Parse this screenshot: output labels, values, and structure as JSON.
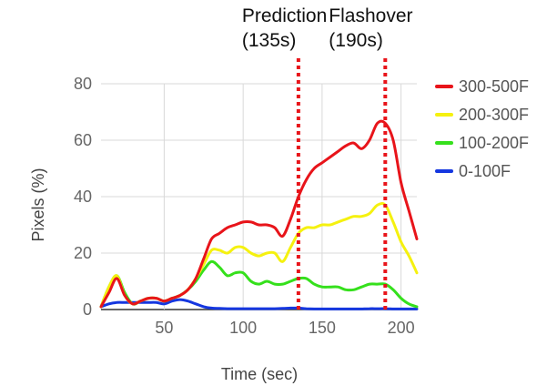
{
  "chart_data": {
    "type": "line",
    "title": "",
    "xlabel": "Time (sec)",
    "ylabel": "Pixels (%)",
    "xlim": [
      10,
      210
    ],
    "ylim": [
      0,
      80
    ],
    "x_ticks": [
      50,
      100,
      150,
      200
    ],
    "y_ticks": [
      0,
      20,
      40,
      60,
      80
    ],
    "grid": true,
    "legend_position": "right",
    "annotations": [
      {
        "line1": "Prediction",
        "line2": "(135s)",
        "x": 135
      },
      {
        "line1": "Flashover",
        "line2": "(190s)",
        "x": 190
      }
    ],
    "annotation_color": "#e8141a",
    "series": [
      {
        "name": "300-500F",
        "color": "#e8141a",
        "x": [
          10,
          15,
          20,
          25,
          30,
          35,
          40,
          45,
          50,
          55,
          60,
          65,
          70,
          75,
          80,
          85,
          90,
          95,
          100,
          105,
          110,
          115,
          120,
          125,
          130,
          135,
          140,
          145,
          150,
          155,
          160,
          165,
          170,
          175,
          180,
          185,
          190,
          195,
          200,
          205,
          210
        ],
        "values": [
          1,
          6,
          11,
          5,
          2,
          3,
          4,
          4,
          3,
          4,
          5,
          7,
          11,
          18,
          25,
          27,
          29,
          30,
          31,
          31,
          30,
          30,
          29,
          26,
          32,
          40,
          46,
          50,
          52,
          54,
          56,
          58,
          59,
          57,
          60,
          66,
          66,
          60,
          45,
          35,
          25
        ]
      },
      {
        "name": "200-300F",
        "color": "#f5f10f",
        "x": [
          10,
          15,
          20,
          25,
          30,
          35,
          40,
          45,
          50,
          55,
          60,
          65,
          70,
          75,
          80,
          85,
          90,
          95,
          100,
          105,
          110,
          115,
          120,
          125,
          130,
          135,
          140,
          145,
          150,
          155,
          160,
          165,
          170,
          175,
          180,
          185,
          190,
          195,
          200,
          205,
          210
        ],
        "values": [
          1,
          8,
          12,
          5,
          2,
          3,
          4,
          4,
          3,
          4,
          5,
          7,
          11,
          16,
          21,
          21,
          20,
          22,
          22,
          20,
          19,
          20,
          20,
          17,
          22,
          27,
          29,
          29,
          30,
          30,
          31,
          32,
          33,
          33,
          34,
          37,
          37,
          31,
          24,
          19,
          13
        ]
      },
      {
        "name": "100-200F",
        "color": "#35e01c",
        "x": [
          10,
          15,
          20,
          25,
          30,
          35,
          40,
          45,
          50,
          55,
          60,
          65,
          70,
          75,
          80,
          85,
          90,
          95,
          100,
          105,
          110,
          115,
          120,
          125,
          130,
          135,
          140,
          145,
          150,
          155,
          160,
          165,
          170,
          175,
          180,
          185,
          190,
          195,
          200,
          205,
          210
        ],
        "values": [
          1,
          8,
          12,
          6,
          2,
          3,
          4,
          4,
          3,
          4,
          5,
          7,
          10,
          14,
          17,
          15,
          12,
          13,
          13,
          10,
          9,
          10,
          9,
          9,
          10,
          11,
          11,
          9,
          8,
          8,
          8,
          7,
          7,
          8,
          9,
          9,
          9,
          7,
          4,
          2,
          1
        ]
      },
      {
        "name": "0-100F",
        "color": "#1537e0",
        "x": [
          10,
          15,
          20,
          25,
          30,
          35,
          40,
          45,
          50,
          55,
          60,
          65,
          70,
          75,
          80,
          85,
          90,
          95,
          100,
          105,
          110,
          115,
          120,
          125,
          130,
          135,
          140,
          145,
          150,
          155,
          160,
          165,
          170,
          175,
          180,
          185,
          190,
          195,
          200,
          205,
          210
        ],
        "values": [
          1,
          2,
          2.5,
          2.5,
          2.5,
          2.5,
          2.5,
          2.5,
          2,
          3,
          3.5,
          3,
          2,
          1,
          0.5,
          0.4,
          0.3,
          0.3,
          0.3,
          0.3,
          0.3,
          0.3,
          0.3,
          0.4,
          0.5,
          0.5,
          0.3,
          0.2,
          0.2,
          0.2,
          0.2,
          0.2,
          0.2,
          0.2,
          0.3,
          0.3,
          0.3,
          0.2,
          0.2,
          0.2,
          0.2
        ]
      }
    ]
  }
}
